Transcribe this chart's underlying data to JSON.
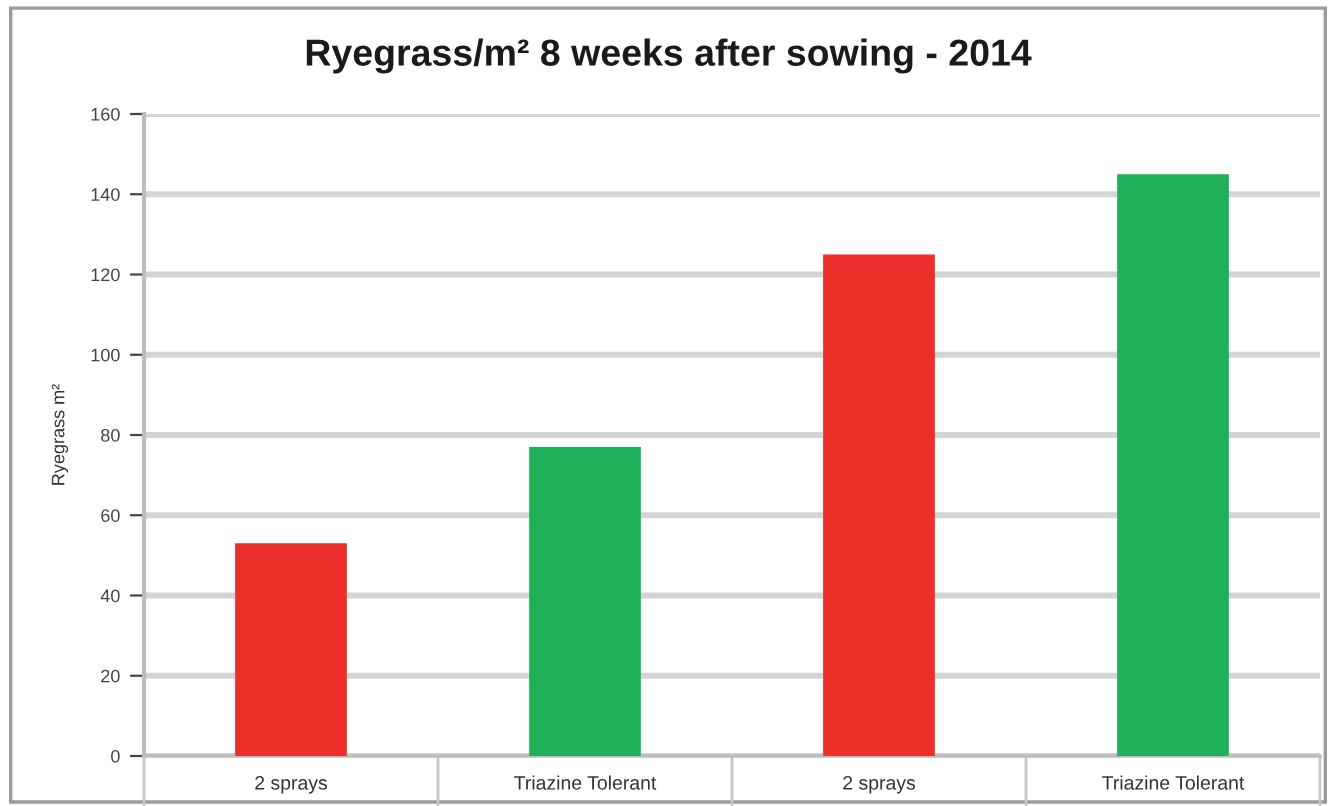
{
  "chart_data": {
    "type": "bar",
    "title": "Ryegrass/m² 8 weeks after sowing - 2014",
    "ylabel": "Ryegrass m²",
    "categories": [
      "2 sprays",
      "Triazine Tolerant",
      "2 sprays",
      "Triazine Tolerant"
    ],
    "values": [
      53,
      77,
      125,
      145
    ],
    "colors": [
      "#ec2f2b",
      "#21b05a",
      "#ec2f2b",
      "#21b05a"
    ],
    "ylim": [
      0,
      160
    ],
    "yticks": [
      0,
      20,
      40,
      60,
      80,
      100,
      120,
      140,
      160
    ],
    "grid": "y",
    "legend": false
  }
}
